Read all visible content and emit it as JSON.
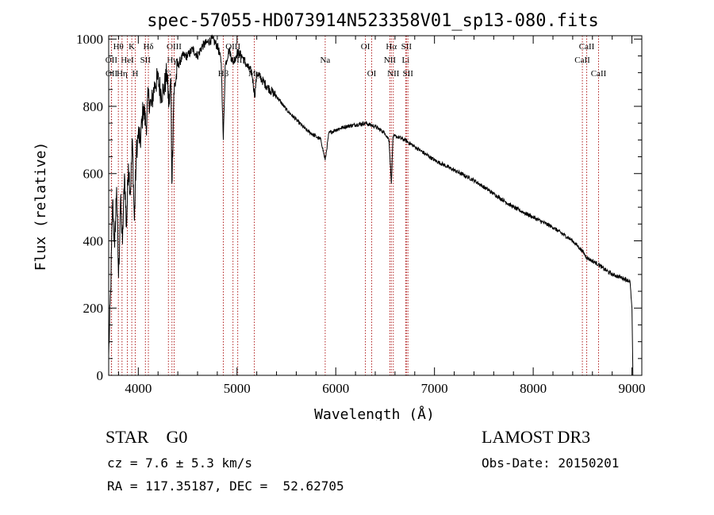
{
  "chart_data": {
    "type": "line",
    "title": "spec-57055-HD073914N523358V01_sp13-080.fits",
    "xlabel": "Wavelength (Å)",
    "ylabel": "Flux (relative)",
    "xlim": [
      3700,
      9100
    ],
    "ylim": [
      0,
      1010
    ],
    "xticks": [
      4000,
      5000,
      6000,
      7000,
      8000,
      9000
    ],
    "yticks": [
      0,
      200,
      400,
      600,
      800,
      1000
    ],
    "series": [
      {
        "name": "flux",
        "x": [
          3700,
          3720,
          3740,
          3760,
          3780,
          3800,
          3820,
          3840,
          3860,
          3880,
          3900,
          3920,
          3940,
          3960,
          3980,
          4000,
          4020,
          4050,
          4080,
          4100,
          4130,
          4170,
          4200,
          4230,
          4260,
          4290,
          4310,
          4330,
          4340,
          4360,
          4400,
          4450,
          4500,
          4550,
          4600,
          4650,
          4700,
          4750,
          4800,
          4820,
          4840,
          4861,
          4880,
          4920,
          4960,
          5000,
          5050,
          5100,
          5150,
          5180,
          5200,
          5250,
          5300,
          5400,
          5500,
          5600,
          5700,
          5800,
          5850,
          5893,
          5930,
          6000,
          6100,
          6200,
          6300,
          6400,
          6500,
          6540,
          6563,
          6580,
          6620,
          6700,
          6800,
          6900,
          7000,
          7200,
          7400,
          7600,
          7800,
          8000,
          8200,
          8400,
          8498,
          8542,
          8600,
          8662,
          8700,
          8800,
          8900,
          8980,
          9000,
          9010
        ],
        "y": [
          60,
          250,
          520,
          380,
          560,
          290,
          520,
          390,
          600,
          440,
          630,
          540,
          700,
          460,
          660,
          720,
          690,
          800,
          740,
          830,
          800,
          870,
          880,
          840,
          850,
          900,
          800,
          880,
          570,
          840,
          920,
          950,
          950,
          970,
          950,
          980,
          990,
          1000,
          980,
          960,
          930,
          700,
          920,
          970,
          930,
          960,
          950,
          920,
          900,
          830,
          900,
          880,
          860,
          830,
          790,
          760,
          730,
          710,
          700,
          640,
          720,
          730,
          740,
          745,
          750,
          740,
          720,
          700,
          570,
          710,
          710,
          700,
          680,
          660,
          640,
          610,
          580,
          540,
          500,
          470,
          440,
          400,
          370,
          350,
          340,
          330,
          320,
          300,
          290,
          280,
          200,
          0
        ]
      }
    ],
    "lines": [
      {
        "label": "Hθ",
        "x": 3798,
        "row": 0
      },
      {
        "label": "K",
        "x": 3934,
        "row": 0
      },
      {
        "label": "Hδ",
        "x": 4102,
        "row": 0
      },
      {
        "label": "OIII",
        "x": 4363,
        "row": 0
      },
      {
        "label": "OIII",
        "x": 4959,
        "row": 0
      },
      {
        "label": "OI",
        "x": 6300,
        "row": 0
      },
      {
        "label": "Hα",
        "x": 6563,
        "row": 0
      },
      {
        "label": "SII",
        "x": 6716,
        "row": 0
      },
      {
        "label": "CaII",
        "x": 8542,
        "row": 0
      },
      {
        "label": "OII",
        "x": 3727,
        "row": 1
      },
      {
        "label": "HeI",
        "x": 3889,
        "row": 1
      },
      {
        "label": "SII",
        "x": 4072,
        "row": 1
      },
      {
        "label": "Hγ",
        "x": 4341,
        "row": 1
      },
      {
        "label": "OIII",
        "x": 5007,
        "row": 1
      },
      {
        "label": "Na",
        "x": 5893,
        "row": 1
      },
      {
        "label": "NII",
        "x": 6548,
        "row": 1
      },
      {
        "label": "Li",
        "x": 6708,
        "row": 1
      },
      {
        "label": "CaII",
        "x": 8498,
        "row": 1
      },
      {
        "label": "OII",
        "x": 3729,
        "row": 2
      },
      {
        "label": "Hη",
        "x": 3835,
        "row": 2
      },
      {
        "label": "H",
        "x": 3969,
        "row": 2
      },
      {
        "label": "G",
        "x": 4305,
        "row": 2
      },
      {
        "label": "Hβ",
        "x": 4861,
        "row": 2
      },
      {
        "label": "Mg",
        "x": 5175,
        "row": 2
      },
      {
        "label": "OI",
        "x": 6364,
        "row": 2
      },
      {
        "label": "NII",
        "x": 6583,
        "row": 2
      },
      {
        "label": "SII",
        "x": 6731,
        "row": 2
      },
      {
        "label": "CaII",
        "x": 8662,
        "row": 2
      }
    ]
  },
  "info": {
    "object_class": "STAR",
    "subclass": "G0",
    "survey": "LAMOST DR3",
    "redshift_text": "cz = 7.6 ± 5.3 km/s",
    "obs_date_text": "Obs-Date: 20150201",
    "coords_text": "RA = 117.35187, DEC =  52.62705"
  },
  "colors": {
    "spectrum": "#000000",
    "line_marker": "#b22222",
    "axis": "#000000"
  }
}
